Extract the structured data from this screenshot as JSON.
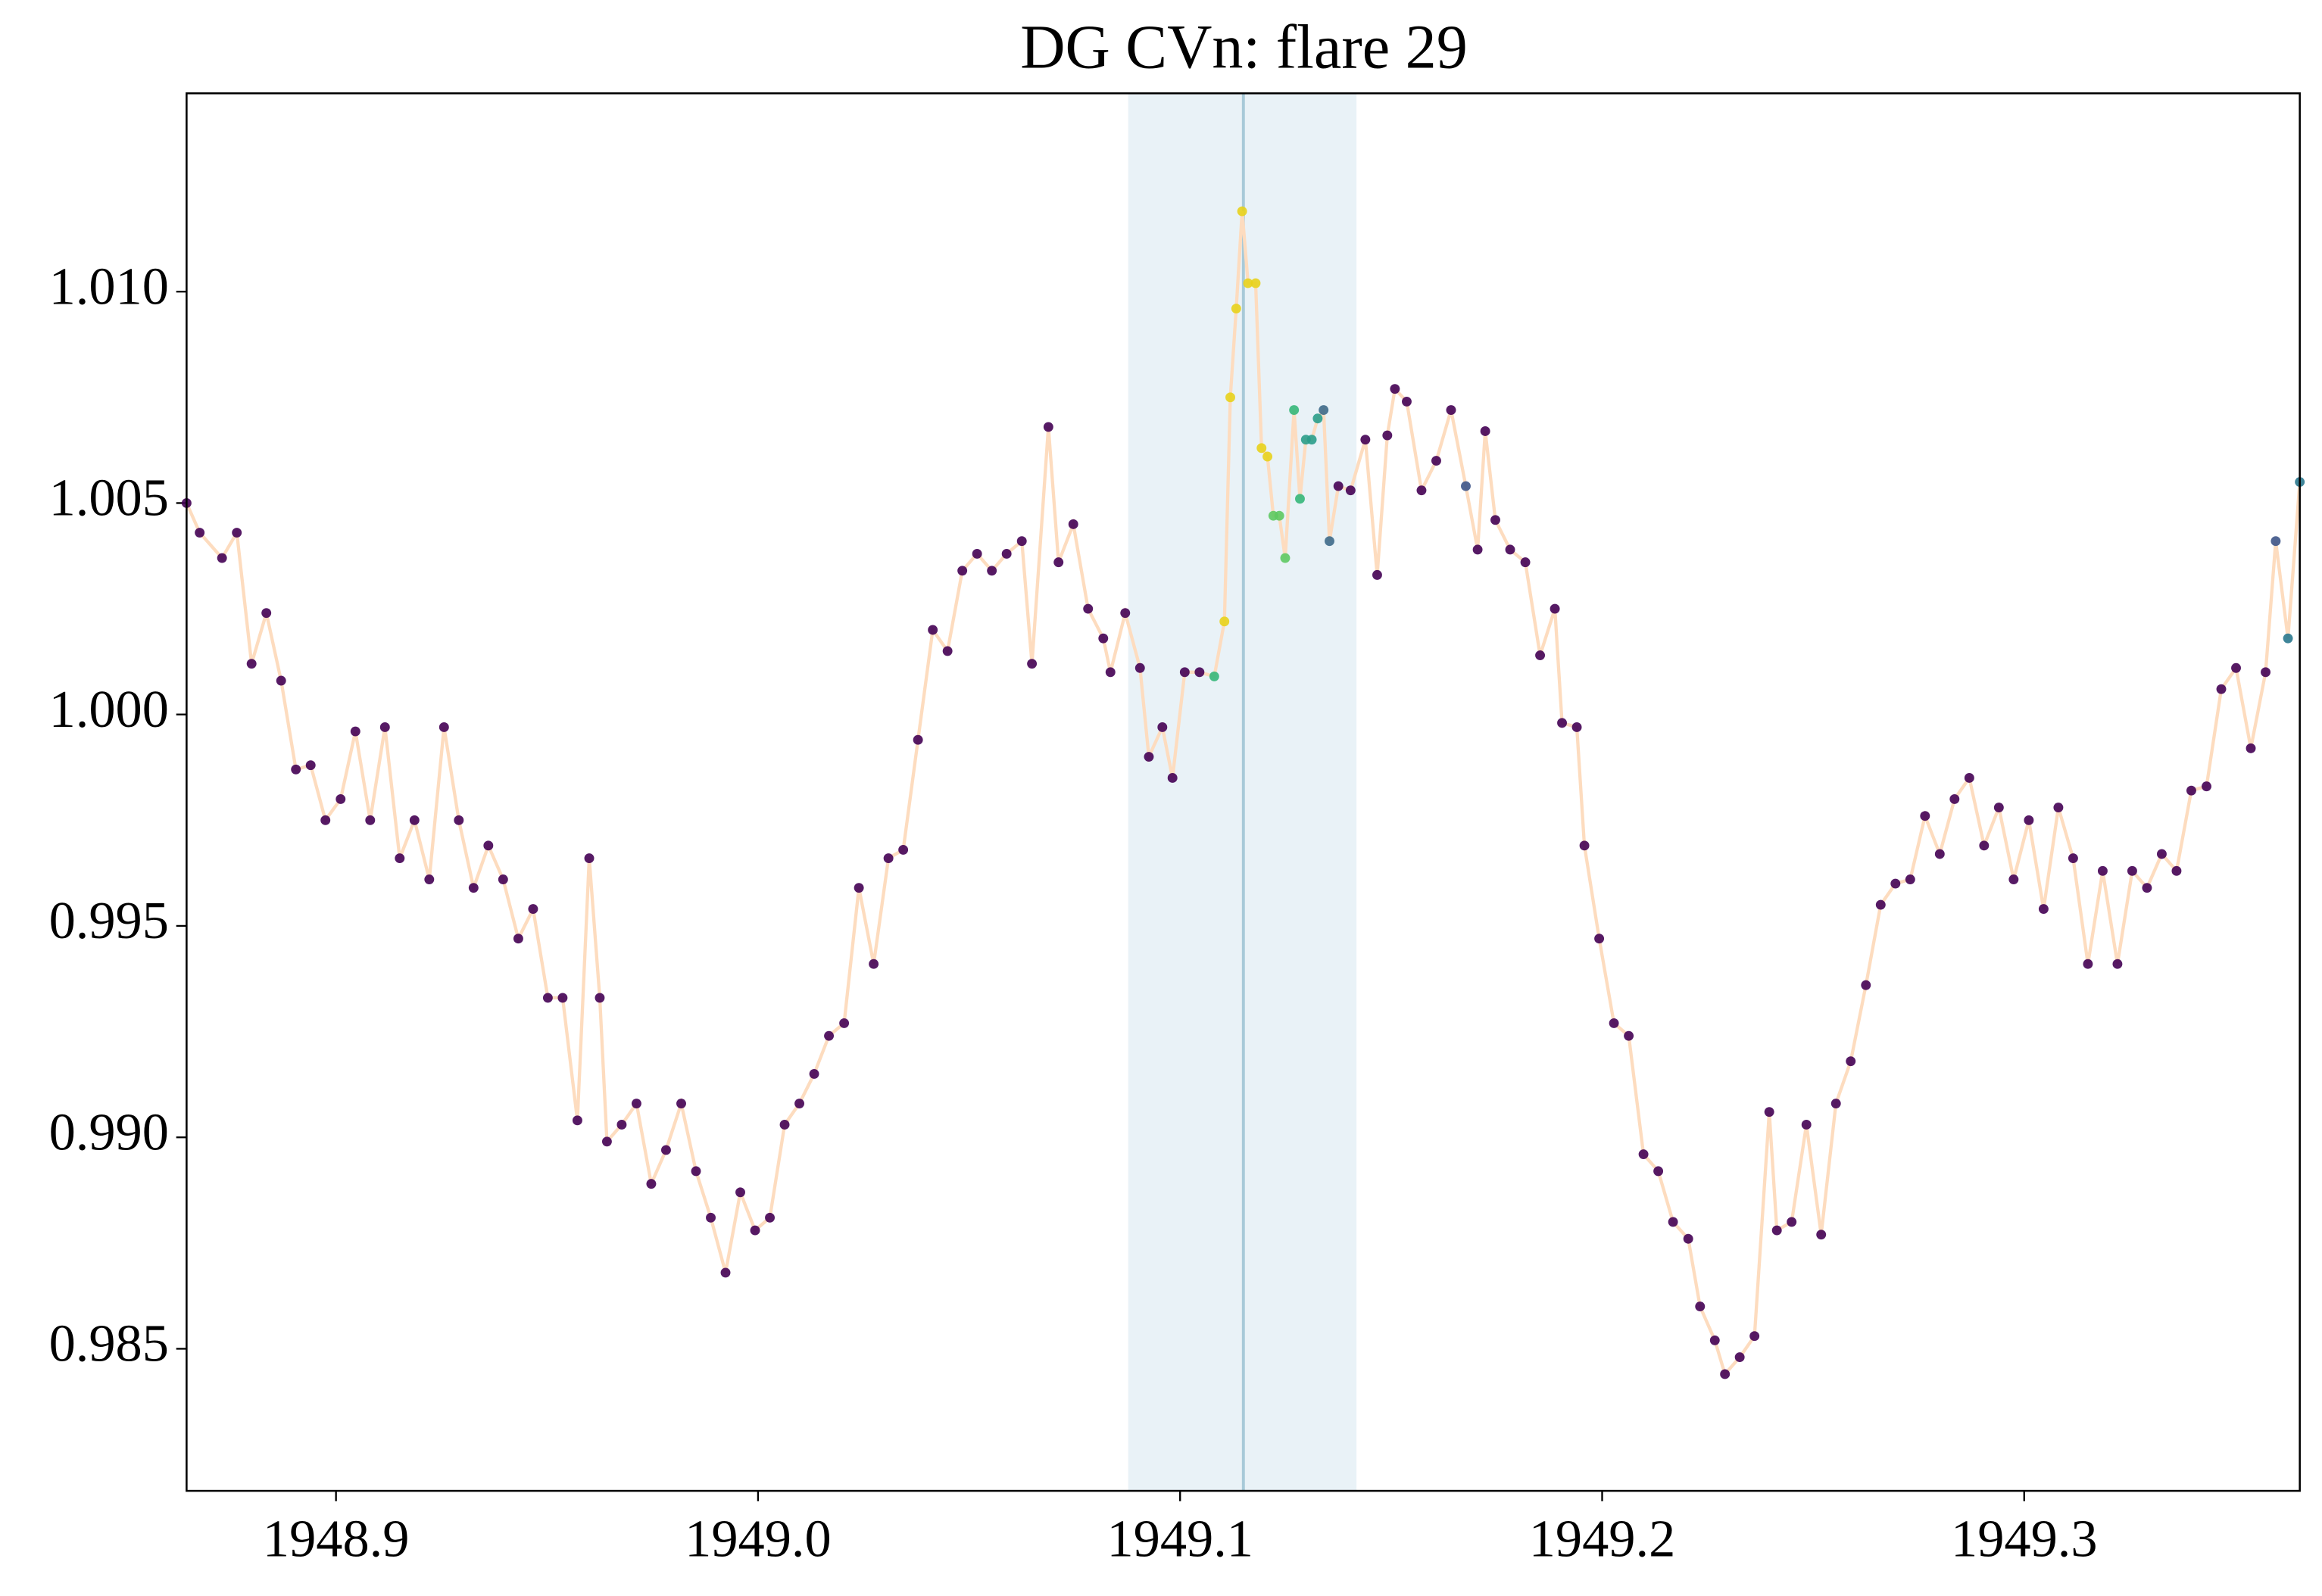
{
  "chart_data": {
    "type": "scatter",
    "title": "DG CVn: flare 29",
    "xlim": [
      1948.8646,
      1949.3653
    ],
    "ylim": [
      0.98164,
      1.01469
    ],
    "xticks": [
      1948.9,
      {
        "value": 1949.0,
        "label": "1949.0"
      },
      1949.1,
      1949.2,
      1949.3
    ],
    "yticks": [
      {
        "value": 0.985,
        "label": "0.985"
      },
      {
        "value": 0.99,
        "label": "0.990"
      },
      {
        "value": 0.995,
        "label": "0.995"
      },
      {
        "value": 1.0,
        "label": "1.000"
      },
      {
        "value": 1.005,
        "label": "1.005"
      },
      {
        "value": 1.01,
        "label": "1.010"
      }
    ],
    "span": [
      1949.0877,
      1949.1418
    ],
    "span_color": "#e9f2f7",
    "peak_x": 1949.115,
    "peak_color": "#a8cad8",
    "line_color": "#fddcbf",
    "x": [
      1948.8646,
      1948.8677,
      1948.873,
      1948.8765,
      1948.88,
      1948.8835,
      1948.887,
      1948.8905,
      1948.894,
      1948.8975,
      1948.9011,
      1948.9046,
      1948.9081,
      1948.9116,
      1948.9151,
      1948.9186,
      1948.9221,
      1948.9256,
      1948.9291,
      1948.9326,
      1948.9361,
      1948.9396,
      1948.9432,
      1948.9467,
      1948.9502,
      1948.9537,
      1948.9572,
      1948.96,
      1948.9625,
      1948.9642,
      1948.9677,
      1948.9712,
      1948.9747,
      1948.9782,
      1948.9818,
      1948.9853,
      1948.9888,
      1948.9923,
      1948.9958,
      1948.9993,
      1949.0028,
      1949.0063,
      1949.0098,
      1949.0133,
      1949.0168,
      1949.0204,
      1949.0239,
      1949.0274,
      1949.0309,
      1949.0344,
      1949.0379,
      1949.0414,
      1949.0449,
      1949.0484,
      1949.0519,
      1949.0554,
      1949.0589,
      1949.0625,
      1949.0649,
      1949.0688,
      1949.0712,
      1949.0747,
      1949.0782,
      1949.0818,
      1949.0835,
      1949.087,
      1949.0905,
      1949.0926,
      1949.0958,
      1949.0982,
      1949.1011,
      1949.1046,
      1949.1081,
      1949.1105,
      1949.1119,
      1949.1133,
      1949.1147,
      1949.1161,
      1949.1179,
      1949.1193,
      1949.1207,
      1949.1221,
      1949.1235,
      1949.1249,
      1949.127,
      1949.1284,
      1949.1298,
      1949.1312,
      1949.1326,
      1949.134,
      1949.1354,
      1949.1375,
      1949.1404,
      1949.1439,
      1949.1467,
      1949.1491,
      1949.1509,
      1949.1537,
      1949.1572,
      1949.1607,
      1949.1642,
      1949.1677,
      1949.1705,
      1949.1723,
      1949.1747,
      1949.1782,
      1949.1818,
      1949.1853,
      1949.1888,
      1949.1905,
      1949.194,
      1949.1958,
      1949.1993,
      1949.2028,
      1949.2063,
      1949.2098,
      1949.2133,
      1949.2168,
      1949.2204,
      1949.2232,
      1949.2267,
      1949.2291,
      1949.2326,
      1949.2361,
      1949.2396,
      1949.2414,
      1949.2449,
      1949.2484,
      1949.2519,
      1949.2554,
      1949.2589,
      1949.2625,
      1949.266,
      1949.2695,
      1949.273,
      1949.2765,
      1949.28,
      1949.2835,
      1949.287,
      1949.2905,
      1949.294,
      1949.2975,
      1949.3011,
      1949.3046,
      1949.3081,
      1949.3116,
      1949.3151,
      1949.3186,
      1949.3221,
      1949.3256,
      1949.3291,
      1949.3326,
      1949.3361,
      1949.3396,
      1949.3432,
      1949.3467,
      1949.3502,
      1949.3537,
      1949.3572,
      1949.3596,
      1949.3625,
      1949.3653
    ],
    "series": [
      {
        "values": [
          1.005,
          1.0043,
          1.0037,
          1.0043,
          1.0012,
          1.0024,
          1.0008,
          0.9987,
          0.9988,
          0.9975,
          0.998,
          0.9996,
          0.9975,
          0.9997,
          0.9966,
          0.9975,
          0.9961,
          0.9997,
          0.9975,
          0.9959,
          0.9969,
          0.9961,
          0.9947,
          0.9954,
          0.9933,
          0.9933,
          0.9904,
          0.9966,
          0.9933,
          0.9899,
          0.9903,
          0.9908,
          0.9889,
          0.9897,
          0.9908,
          0.9892,
          0.9881,
          0.9868,
          0.9887,
          0.9878,
          0.9881,
          0.9903,
          0.9908,
          0.9915,
          0.9924,
          0.9927,
          0.9959,
          0.9941,
          0.9966,
          0.9968,
          0.9994,
          1.002,
          1.0015,
          1.0034,
          1.0038,
          1.0034,
          1.0038,
          1.0041,
          1.0012,
          1.0068,
          1.0036,
          1.0045,
          1.0025,
          1.0018,
          1.001,
          1.0024,
          1.0011,
          0.999,
          0.9997,
          0.9985,
          1.001,
          1.001,
          1.0009,
          1.0022,
          1.0075,
          1.0096,
          1.0119,
          1.0102,
          1.0102,
          1.0063,
          1.0061,
          1.0047,
          1.0047,
          1.0037,
          1.0072,
          1.0051,
          1.0065,
          1.0065,
          1.007,
          1.0072,
          1.0041,
          1.0054,
          1.0053,
          1.0065,
          1.0033,
          1.0066,
          1.0077,
          1.0074,
          1.0053,
          1.006,
          1.0072,
          1.0054,
          1.0039,
          1.0067,
          1.0046,
          1.0039,
          1.0036,
          1.0014,
          1.0025,
          0.9998,
          0.9997,
          0.9969,
          0.9947,
          0.9927,
          0.9924,
          0.9896,
          0.9892,
          0.988,
          0.9876,
          0.986,
          0.9852,
          0.9844,
          0.9848,
          0.9853,
          0.9906,
          0.9878,
          0.988,
          0.9903,
          0.9877,
          0.9908,
          0.9918,
          0.9936,
          0.9955,
          0.996,
          0.9961,
          0.9976,
          0.9967,
          0.998,
          0.9985,
          0.9969,
          0.9978,
          0.9961,
          0.9975,
          0.9954,
          0.9978,
          0.9966,
          0.9941,
          0.9963,
          0.9941,
          0.9963,
          0.9959,
          0.9967,
          0.9963,
          0.9982,
          0.9983,
          1.0006,
          1.0011,
          0.9992,
          1.001,
          1.0041,
          1.0018,
          1.0055
        ],
        "colors": [
          "#440154",
          "#440154",
          "#440154",
          "#440154",
          "#440154",
          "#440154",
          "#440154",
          "#440154",
          "#440154",
          "#440154",
          "#440154",
          "#440154",
          "#440154",
          "#440154",
          "#440154",
          "#440154",
          "#440154",
          "#440154",
          "#440154",
          "#440154",
          "#440154",
          "#440154",
          "#440154",
          "#440154",
          "#440154",
          "#440154",
          "#440154",
          "#440154",
          "#440154",
          "#440154",
          "#440154",
          "#440154",
          "#440154",
          "#440154",
          "#440154",
          "#440154",
          "#440154",
          "#440154",
          "#440154",
          "#440154",
          "#440154",
          "#440154",
          "#440154",
          "#440154",
          "#440154",
          "#440154",
          "#440154",
          "#440154",
          "#440154",
          "#440154",
          "#440154",
          "#440154",
          "#440154",
          "#440154",
          "#440154",
          "#440154",
          "#440154",
          "#440154",
          "#440154",
          "#440154",
          "#440154",
          "#440154",
          "#440154",
          "#440154",
          "#440154",
          "#440154",
          "#440154",
          "#440154",
          "#440154",
          "#440154",
          "#440154",
          "#440154",
          "#35b779",
          "#e8d21b",
          "#e8d21b",
          "#e8d21b",
          "#e8d21b",
          "#e8d21b",
          "#e8d21b",
          "#e8d21b",
          "#e8d21b",
          "#5ec962",
          "#5ec962",
          "#5ec962",
          "#35b779",
          "#35b779",
          "#2a9d8a",
          "#2a9d8a",
          "#2a9d8a",
          "#3e6a8a",
          "#3e6a8a",
          "#440154",
          "#440154",
          "#440154",
          "#440154",
          "#440154",
          "#440154",
          "#440154",
          "#440154",
          "#440154",
          "#440154",
          "#3e5588",
          "#440154",
          "#440154",
          "#440154",
          "#440154",
          "#440154",
          "#440154",
          "#440154",
          "#440154",
          "#440154",
          "#440154",
          "#440154",
          "#440154",
          "#440154",
          "#440154",
          "#440154",
          "#440154",
          "#440154",
          "#440154",
          "#440154",
          "#440154",
          "#440154",
          "#440154",
          "#440154",
          "#440154",
          "#440154",
          "#440154",
          "#440154",
          "#440154",
          "#440154",
          "#440154",
          "#440154",
          "#440154",
          "#440154",
          "#440154",
          "#440154",
          "#440154",
          "#440154",
          "#440154",
          "#440154",
          "#440154",
          "#440154",
          "#440154",
          "#440154",
          "#440154",
          "#440154",
          "#440154",
          "#440154",
          "#440154",
          "#440154",
          "#440154",
          "#440154",
          "#440154",
          "#440154",
          "#440154",
          "#440154",
          "#440154",
          "#440154",
          "#3e5588",
          "#2a788e",
          "#2a788e"
        ]
      }
    ]
  }
}
